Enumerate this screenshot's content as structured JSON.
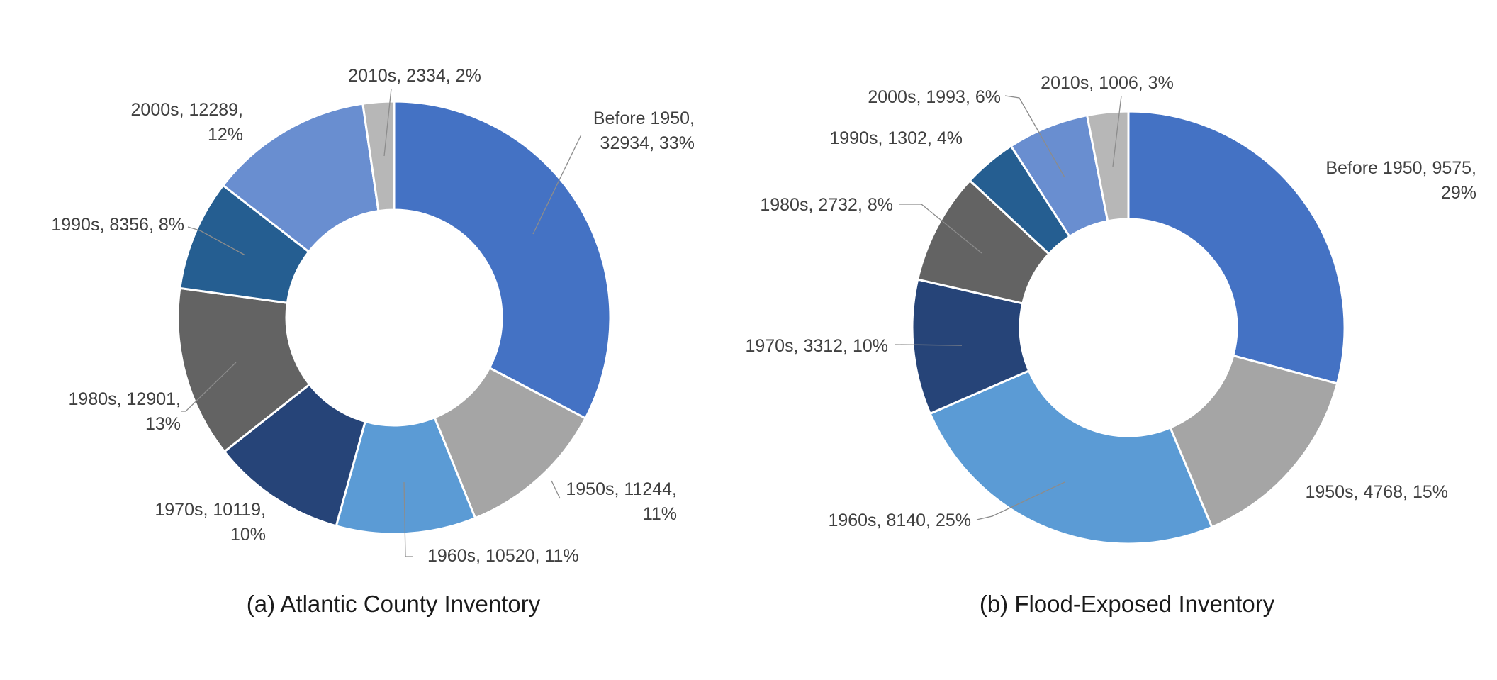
{
  "chart_data": [
    {
      "type": "pie",
      "subtype": "donut",
      "caption": "(a) Atlantic County Inventory",
      "categories": [
        "Before 1950",
        "1950s",
        "1960s",
        "1970s",
        "1980s",
        "1990s",
        "2000s",
        "2010s"
      ],
      "values": [
        32934,
        11244,
        10520,
        10119,
        12901,
        8356,
        12289,
        2334
      ],
      "percent_labels": [
        "33%",
        "11%",
        "11%",
        "10%",
        "13%",
        "8%",
        "12%",
        "2%"
      ],
      "data_labels": [
        [
          "Before 1950,",
          "32934, 33%"
        ],
        [
          "1950s, 11244,",
          "11%"
        ],
        [
          "1960s, 10520, 11%"
        ],
        [
          "1970s, 10119,",
          "10%"
        ],
        [
          "1980s, 12901,",
          "13%"
        ],
        [
          "1990s, 8356, 8%"
        ],
        [
          "2000s, 12289,",
          "12%"
        ],
        [
          "2010s, 2334, 2%"
        ]
      ],
      "colors": [
        "#4472C4",
        "#A5A5A5",
        "#5B9BD5",
        "#264478",
        "#636363",
        "#255E91",
        "#698ED0",
        "#B7B7B7"
      ],
      "start_angle": "12 o'clock",
      "direction": "clockwise"
    },
    {
      "type": "pie",
      "subtype": "donut",
      "caption": "(b) Flood-Exposed Inventory",
      "categories": [
        "Before 1950",
        "1950s",
        "1960s",
        "1970s",
        "1980s",
        "1990s",
        "2000s",
        "2010s"
      ],
      "values": [
        9575,
        4768,
        8140,
        3312,
        2732,
        1302,
        1993,
        1006
      ],
      "percent_labels": [
        "29%",
        "15%",
        "25%",
        "10%",
        "8%",
        "4%",
        "6%",
        "3%"
      ],
      "data_labels": [
        [
          "Before 1950, 9575,",
          "29%"
        ],
        [
          "1950s, 4768, 15%"
        ],
        [
          "1960s, 8140, 25%"
        ],
        [
          "1970s, 3312, 10%"
        ],
        [
          "1980s, 2732, 8%"
        ],
        [
          "1990s, 1302, 4%"
        ],
        [
          "2000s, 1993, 6%"
        ],
        [
          "2010s, 1006, 3%"
        ]
      ],
      "colors": [
        "#4472C4",
        "#A5A5A5",
        "#5B9BD5",
        "#264478",
        "#636363",
        "#255E91",
        "#698ED0",
        "#B7B7B7"
      ],
      "start_angle": "12 o'clock",
      "direction": "clockwise"
    }
  ]
}
